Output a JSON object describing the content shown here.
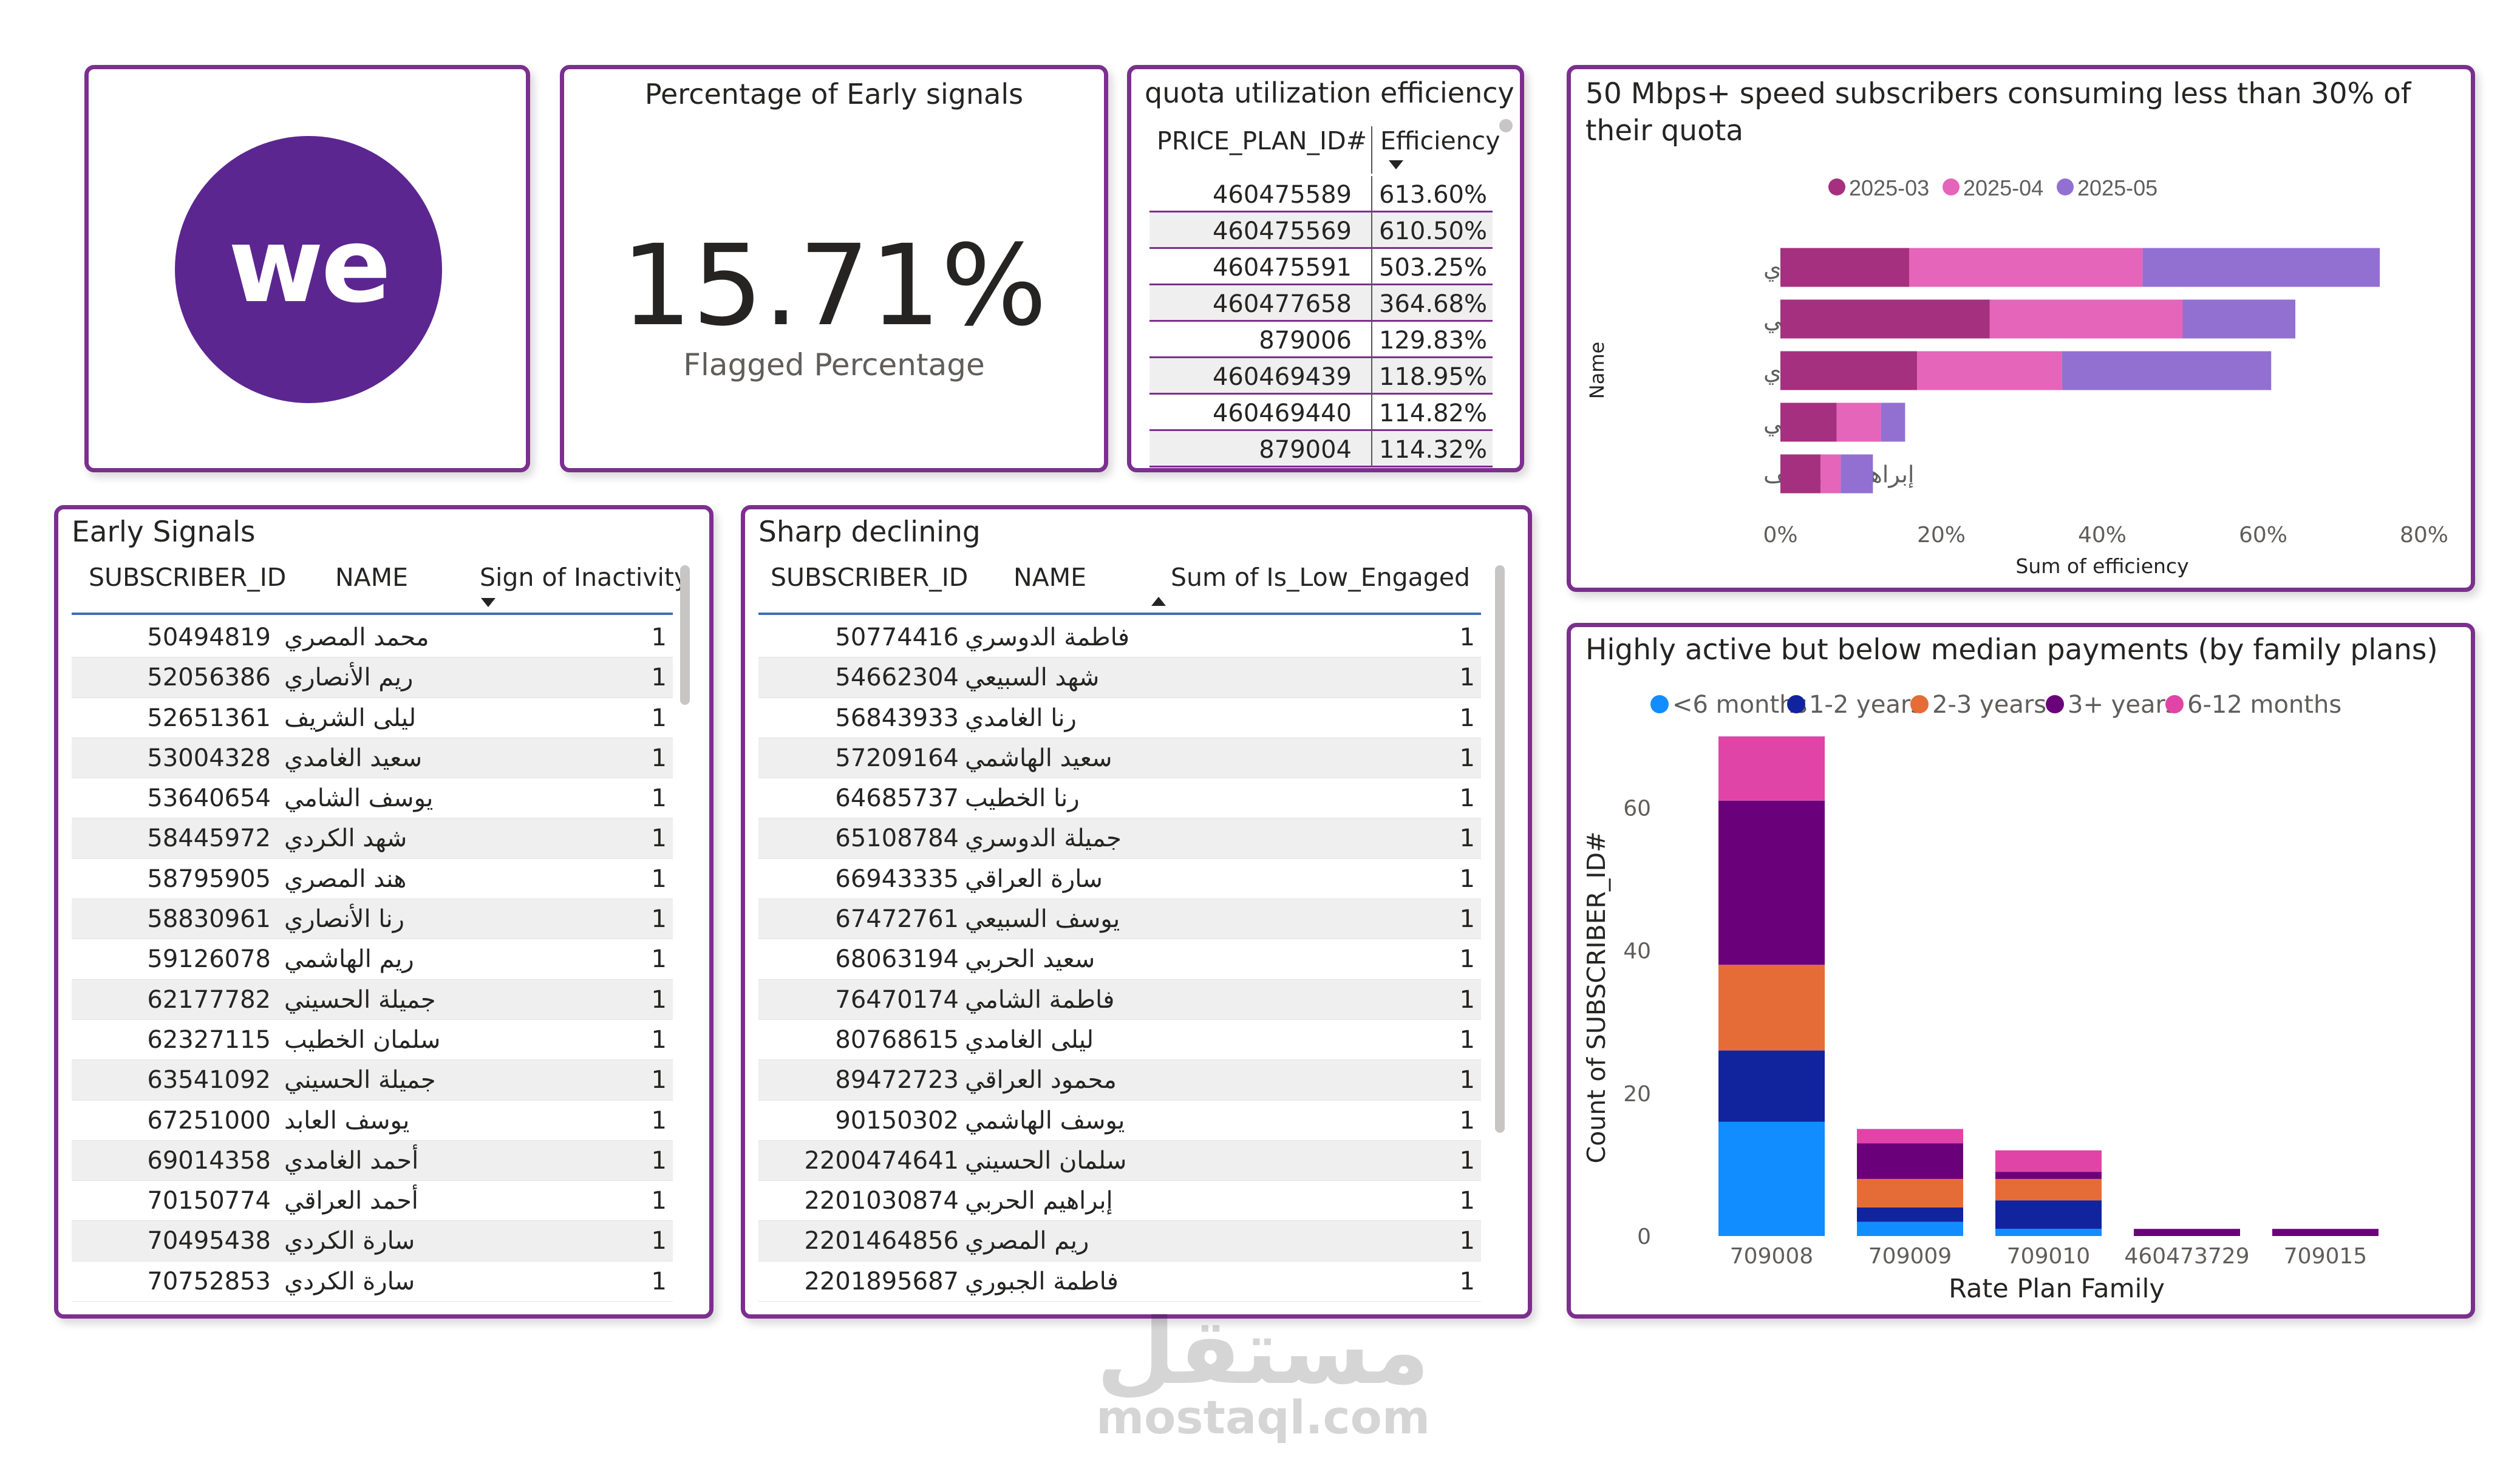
{
  "logo": {
    "text": "we",
    "color": "#5c2691"
  },
  "kpi": {
    "title": "Percentage of Early signals",
    "value": "15.71%",
    "label": "Flagged Percentage"
  },
  "quota": {
    "title": "quota utilization efficiency",
    "col1": "PRICE_PLAN_ID#",
    "col2": "Efficiency",
    "rows": [
      [
        "460475589",
        "613.60%"
      ],
      [
        "460475569",
        "610.50%"
      ],
      [
        "460475591",
        "503.25%"
      ],
      [
        "460477658",
        "364.68%"
      ],
      [
        "879006",
        "129.83%"
      ],
      [
        "460469439",
        "118.95%"
      ],
      [
        "460469440",
        "114.82%"
      ],
      [
        "879004",
        "114.32%"
      ]
    ]
  },
  "early": {
    "title": "Early Signals",
    "col1": "SUBSCRIBER_ID",
    "col2": "NAME",
    "col3": "Sign of Inactivity",
    "rows": [
      [
        "50494819",
        "محمد المصري",
        "1"
      ],
      [
        "52056386",
        "ريم الأنصاري",
        "1"
      ],
      [
        "52651361",
        "ليلى الشريف",
        "1"
      ],
      [
        "53004328",
        "سعيد الغامدي",
        "1"
      ],
      [
        "53640654",
        "يوسف الشامي",
        "1"
      ],
      [
        "58445972",
        "شهد الكردي",
        "1"
      ],
      [
        "58795905",
        "هند المصري",
        "1"
      ],
      [
        "58830961",
        "رنا الأنصاري",
        "1"
      ],
      [
        "59126078",
        "ريم الهاشمي",
        "1"
      ],
      [
        "62177782",
        "جميلة الحسيني",
        "1"
      ],
      [
        "62327115",
        "سلمان الخطيب",
        "1"
      ],
      [
        "63541092",
        "جميلة الحسيني",
        "1"
      ],
      [
        "67251000",
        "يوسف العابد",
        "1"
      ],
      [
        "69014358",
        "أحمد الغامدي",
        "1"
      ],
      [
        "70150774",
        "أحمد العراقي",
        "1"
      ],
      [
        "70495438",
        "سارة الكردي",
        "1"
      ],
      [
        "70752853",
        "سارة الكردي",
        "1"
      ]
    ]
  },
  "sharp": {
    "title": "Sharp declining",
    "col1": "SUBSCRIBER_ID",
    "col2": "NAME",
    "col3": "Sum of Is_Low_Engaged",
    "rows": [
      [
        "50774416",
        "فاطمة الدوسري",
        "1"
      ],
      [
        "54662304",
        "شهد السبيعي",
        "1"
      ],
      [
        "56843933",
        "رنا الغامدي",
        "1"
      ],
      [
        "57209164",
        "سعيد الهاشمي",
        "1"
      ],
      [
        "64685737",
        "رنا الخطيب",
        "1"
      ],
      [
        "65108784",
        "جميلة الدوسري",
        "1"
      ],
      [
        "66943335",
        "سارة العراقي",
        "1"
      ],
      [
        "67472761",
        "يوسف السبيعي",
        "1"
      ],
      [
        "68063194",
        "سعيد الحربي",
        "1"
      ],
      [
        "76470174",
        "فاطمة الشامي",
        "1"
      ],
      [
        "80768615",
        "ليلى الغامدي",
        "1"
      ],
      [
        "89472723",
        "محمود العراقي",
        "1"
      ],
      [
        "90150302",
        "يوسف الهاشمي",
        "1"
      ],
      [
        "2200474641",
        "سلمان الحسيني",
        "1"
      ],
      [
        "2201030874",
        "إبراهيم الحربي",
        "1"
      ],
      [
        "2201464856",
        "ريم المصري",
        "1"
      ],
      [
        "2201895687",
        "فاطمة الجبوري",
        "1"
      ]
    ]
  },
  "chart_data": [
    {
      "type": "bar",
      "orientation": "horizontal",
      "stacked": true,
      "title": "50 Mbps+ speed subscribers consuming less than 30% of their quota",
      "xlabel": "Sum of efficiency",
      "ylabel": "Name",
      "xlim": [
        0,
        80
      ],
      "xticks": [
        "0%",
        "20%",
        "40%",
        "60%",
        "80%"
      ],
      "legend_position": "top",
      "categories": [
        "فاطمة الغامدي",
        "هند العراقي",
        "خالد المصري",
        "مها الشامي",
        "إبراهيم الشريف"
      ],
      "series": [
        {
          "name": "2025-03",
          "color": "#a5307f",
          "values": [
            16,
            26,
            17,
            7,
            5
          ]
        },
        {
          "name": "2025-04",
          "color": "#e465b9",
          "values": [
            29,
            24,
            18,
            5.5,
            2.5
          ]
        },
        {
          "name": "2025-05",
          "color": "#9270d1",
          "values": [
            29.5,
            14,
            26,
            3,
            4
          ]
        }
      ]
    },
    {
      "type": "bar",
      "orientation": "vertical",
      "stacked": true,
      "title": "Highly active but below median payments (by family plans)",
      "xlabel": "Rate Plan Family",
      "ylabel": "Count of SUBSCRIBER_ID#",
      "ylim": [
        0,
        70
      ],
      "yticks": [
        "0",
        "20",
        "40",
        "60"
      ],
      "legend_position": "top",
      "categories": [
        "709008",
        "709009",
        "709010",
        "460473729",
        "709015"
      ],
      "series": [
        {
          "name": "<6 months",
          "color": "#118dff",
          "values": [
            16,
            2,
            1,
            0,
            0
          ]
        },
        {
          "name": "1-2 years",
          "color": "#12239e",
          "values": [
            10,
            2,
            4,
            0,
            0
          ]
        },
        {
          "name": "2-3 years",
          "color": "#e66c37",
          "values": [
            12,
            4,
            3,
            0,
            0
          ]
        },
        {
          "name": "3+ years",
          "color": "#6b007b",
          "values": [
            23,
            5,
            1,
            1,
            1
          ]
        },
        {
          "name": "6-12 months",
          "color": "#e044a7",
          "values": [
            9,
            2,
            3,
            0,
            0
          ]
        }
      ]
    }
  ],
  "watermark": {
    "logo": "مستقل",
    "url": "mostaql.com"
  }
}
